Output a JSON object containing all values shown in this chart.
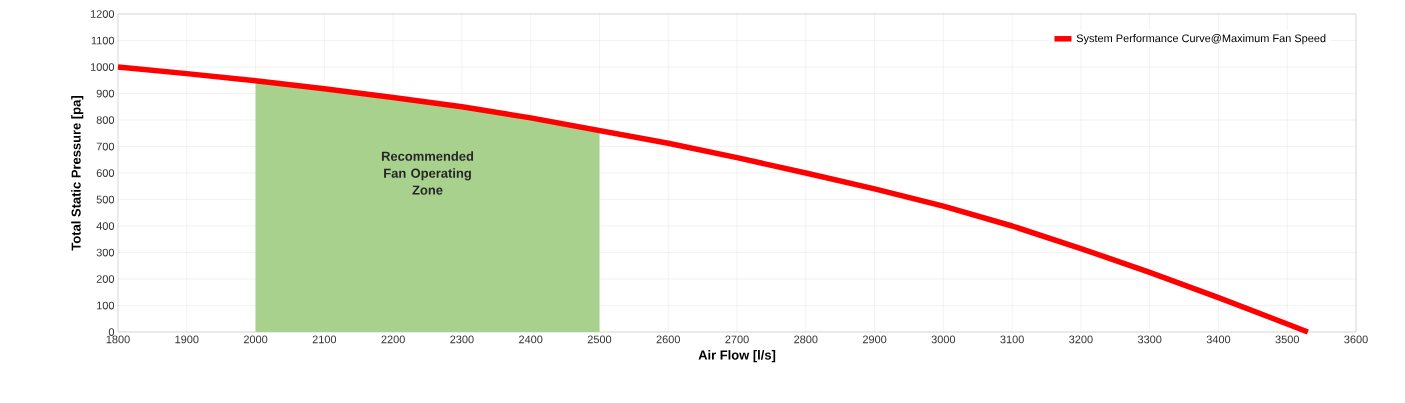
{
  "chart_data": {
    "type": "line",
    "xlabel": "Air Flow [l/s]",
    "ylabel": "Total Static Pressure [pa]",
    "x": [
      1800,
      1900,
      2000,
      2100,
      2200,
      2300,
      2400,
      2500,
      2600,
      2700,
      2800,
      2900,
      3000,
      3100,
      3200,
      3300,
      3400,
      3500,
      3530
    ],
    "series": [
      {
        "name": "System Performance Curve@Maximum Fan Speed",
        "color": "#ff0000",
        "values": [
          1000,
          975,
          948,
          918,
          885,
          850,
          808,
          760,
          712,
          658,
          600,
          540,
          475,
          400,
          315,
          225,
          130,
          30,
          0
        ]
      }
    ],
    "xlim": [
      1800,
      3600
    ],
    "ylim": [
      0,
      1200
    ],
    "xticks": [
      1800,
      1900,
      2000,
      2100,
      2200,
      2300,
      2400,
      2500,
      2600,
      2700,
      2800,
      2900,
      3000,
      3100,
      3200,
      3300,
      3400,
      3500,
      3600
    ],
    "yticks": [
      0,
      100,
      200,
      300,
      400,
      500,
      600,
      700,
      800,
      900,
      1000,
      1100,
      1200
    ],
    "bands": [
      {
        "axis": "x",
        "from": 2000,
        "to": 2500,
        "label": "Recommended Fan Operating Zone",
        "color": "#a9d18e"
      }
    ],
    "grid": true,
    "legend": "top right",
    "marker": "none",
    "line_style": "solid"
  }
}
